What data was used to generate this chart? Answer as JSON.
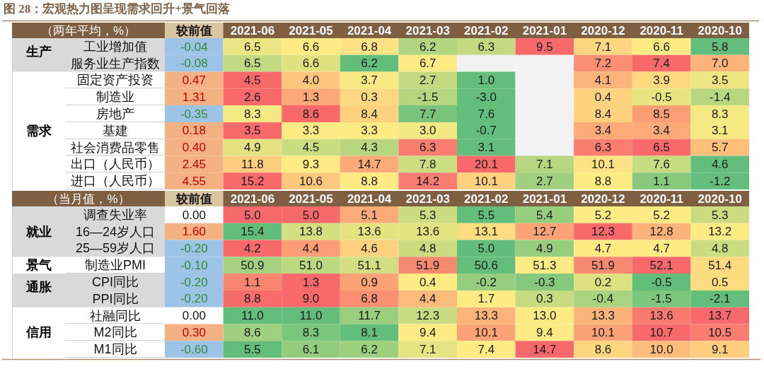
{
  "chart_data": [
    {
      "type": "heatmap",
      "title": "图 28：宏观热力图呈现需求回升+景气回落",
      "subtitle": "（两年平均，%）",
      "categories": [
        "较前值",
        "2021-06",
        "2021-05",
        "2021-04",
        "2021-03",
        "2021-02",
        "2021-01",
        "2020-12",
        "2020-11",
        "2020-10"
      ],
      "y_categories": [
        "工业增加值",
        "服务业生产指数",
        "固定资产投资",
        "制造业",
        "房地产",
        "基建",
        "社会消费品零售",
        "出口（人民币）",
        "进口（人民币）"
      ],
      "y2_categories": [
        "生产",
        null,
        null,
        null,
        null,
        "需求",
        null,
        null,
        null
      ],
      "cells": [
        [
          -0.04,
          6.5,
          6.6,
          6.8,
          6.2,
          6.3,
          9.5,
          7.1,
          6.6,
          5.8
        ],
        [
          -0.08,
          6.5,
          6.6,
          6.2,
          6.7,
          null,
          null,
          7.2,
          7.4,
          7.0
        ],
        [
          0.47,
          4.5,
          4.0,
          3.7,
          2.7,
          1.0,
          null,
          4.1,
          3.9,
          3.5
        ],
        [
          1.31,
          2.6,
          1.3,
          0.3,
          -1.5,
          -3.0,
          null,
          0.4,
          -0.5,
          -1.4
        ],
        [
          -0.35,
          8.3,
          8.6,
          8.4,
          7.7,
          7.6,
          null,
          8.4,
          8.5,
          8.3
        ],
        [
          0.18,
          3.5,
          3.3,
          3.3,
          3.0,
          -0.7,
          null,
          3.4,
          3.4,
          3.1
        ],
        [
          0.4,
          4.9,
          4.5,
          4.3,
          6.3,
          3.1,
          null,
          6.3,
          6.5,
          5.7
        ],
        [
          2.45,
          11.8,
          9.3,
          14.7,
          7.8,
          20.1,
          7.1,
          10.1,
          7.6,
          4.6
        ],
        [
          4.55,
          15.2,
          10.6,
          8.8,
          14.2,
          10.1,
          2.7,
          8.8,
          1.1,
          -1.2
        ]
      ],
      "cell_labels": [
        [
          "-0.04",
          "6.5",
          "6.6",
          "6.8",
          "6.2",
          "6.3",
          "9.5",
          "7.1",
          "6.6",
          "5.8"
        ],
        [
          "-0.08",
          "6.5",
          "6.6",
          "6.2",
          "6.7",
          null,
          null,
          "7.2",
          "7.4",
          "7.0"
        ],
        [
          "0.47",
          "4.5",
          "4.0",
          "3.7",
          "2.7",
          "1.0",
          null,
          "4.1",
          "3.9",
          "3.5"
        ],
        [
          "1.31",
          "2.6",
          "1.3",
          "0.3",
          "-1.5",
          "-3.0",
          null,
          "0.4",
          "-0.5",
          "-1.4"
        ],
        [
          "-0.35",
          "8.3",
          "8.6",
          "8.4",
          "7.7",
          "7.6",
          null,
          "8.4",
          "8.5",
          "8.3"
        ],
        [
          "0.18",
          "3.5",
          "3.3",
          "3.3",
          "3.0",
          "-0.7",
          null,
          "3.4",
          "3.4",
          "3.1"
        ],
        [
          "0.40",
          "4.9",
          "4.5",
          "4.3",
          "6.3",
          "3.1",
          null,
          "6.3",
          "6.5",
          "5.7"
        ],
        [
          "2.45",
          "11.8",
          "9.3",
          "14.7",
          "7.8",
          "20.1",
          "7.1",
          "10.1",
          "7.6",
          "4.6"
        ],
        [
          "4.55",
          "15.2",
          "10.6",
          "8.8",
          "14.2",
          "10.1",
          "2.7",
          "8.8",
          "1.1",
          "-1.2"
        ]
      ],
      "colors": [
        [
          "#9dc3e6",
          "#ebe583",
          "#ffeb84",
          "#fee283",
          "#b1d580",
          "#c5da80",
          "#f8696b",
          "#fed580",
          "#ffeb84",
          "#63be7b"
        ],
        [
          "#9dc3e6",
          "#c1d980",
          "#e0e282",
          "#63be7b",
          "#ffeb84",
          "#f2f2f2",
          "#f2f2f2",
          "#fa8f73",
          "#f8696b",
          "#fcb379"
        ],
        [
          "#f4b183",
          "#f8696b",
          "#fdc67c",
          "#f9e984",
          "#c2d980",
          "#63be7b",
          "#f2f2f2",
          "#fcb379",
          "#fed981",
          "#eee683"
        ],
        [
          "#f4b183",
          "#f8696b",
          "#fba878",
          "#fed880",
          "#b5d67f",
          "#63be7b",
          "#f2f2f2",
          "#fed37f",
          "#e9e583",
          "#b9d77f"
        ],
        [
          "#9dc3e6",
          "#f5e984",
          "#f8696b",
          "#fed17f",
          "#78c47c",
          "#63be7b",
          "#f2f2f2",
          "#fed17f",
          "#fb9d75",
          "#f5e984"
        ],
        [
          "#f4b183",
          "#f8696b",
          "#ffeb84",
          "#ffeb84",
          "#f3e984",
          "#63be7b",
          "#f2f2f2",
          "#fcaa78",
          "#fcaa78",
          "#f7e984"
        ],
        [
          "#f4b183",
          "#e3e382",
          "#c9dc80",
          "#b8d67f",
          "#f97e70",
          "#63be7b",
          "#f2f2f2",
          "#f97e70",
          "#f8696b",
          "#fdc07b"
        ],
        [
          "#f4b183",
          "#fecd7e",
          "#ffeb84",
          "#fcaa78",
          "#cddd81",
          "#f8696b",
          "#b6d67f",
          "#fee283",
          "#c7db80",
          "#63be7b"
        ],
        [
          "#f4b183",
          "#f8696b",
          "#fdc77c",
          "#ffeb84",
          "#f97d70",
          "#fed17f",
          "#a0d07f",
          "#ffeb84",
          "#88c97d",
          "#63be7b"
        ]
      ]
    },
    {
      "type": "heatmap",
      "subtitle": "（当月值，%）",
      "categories": [
        "较前值",
        "2021-06",
        "2021-05",
        "2021-04",
        "2021-03",
        "2021-02",
        "2021-01",
        "2020-12",
        "2020-11",
        "2020-10"
      ],
      "y_categories": [
        "调查失业率",
        "16—24岁人口",
        "25—59岁人口",
        "制造业PMI",
        "CPI同比",
        "PPI同比",
        "社融同比",
        "M2同比",
        "M1同比"
      ],
      "y2_categories": [
        null,
        "就业",
        null,
        "景气",
        "通胀",
        null,
        null,
        "信用",
        null
      ],
      "cells": [
        [
          0.0,
          5.0,
          5.0,
          5.1,
          5.3,
          5.5,
          5.4,
          5.2,
          5.2,
          5.3
        ],
        [
          1.6,
          15.4,
          13.8,
          13.6,
          13.6,
          13.1,
          12.7,
          12.3,
          12.8,
          13.2
        ],
        [
          -0.2,
          4.2,
          4.4,
          4.6,
          4.8,
          5.0,
          4.9,
          4.7,
          4.7,
          4.8
        ],
        [
          -0.1,
          50.9,
          51.0,
          51.1,
          51.9,
          50.6,
          51.3,
          51.9,
          52.1,
          51.4
        ],
        [
          -0.2,
          1.1,
          1.3,
          0.9,
          0.4,
          -0.2,
          -0.3,
          0.2,
          -0.5,
          0.5
        ],
        [
          -0.2,
          8.8,
          9.0,
          6.8,
          4.4,
          1.7,
          0.3,
          -0.4,
          -1.5,
          -2.1
        ],
        [
          0.0,
          11.0,
          11.0,
          11.7,
          12.3,
          13.3,
          13.0,
          13.3,
          13.6,
          13.7
        ],
        [
          0.3,
          8.6,
          8.3,
          8.1,
          9.4,
          10.1,
          9.4,
          10.1,
          10.7,
          10.5
        ],
        [
          -0.6,
          5.5,
          6.1,
          6.2,
          7.1,
          7.4,
          14.7,
          8.6,
          10.0,
          9.1
        ]
      ],
      "cell_labels": [
        [
          "0.00",
          "5.0",
          "5.0",
          "5.1",
          "5.3",
          "5.5",
          "5.4",
          "5.2",
          "5.2",
          "5.3"
        ],
        [
          "1.60",
          "15.4",
          "13.8",
          "13.6",
          "13.6",
          "13.1",
          "12.7",
          "12.3",
          "12.8",
          "13.2"
        ],
        [
          "-0.20",
          "4.2",
          "4.4",
          "4.6",
          "4.8",
          "5.0",
          "4.9",
          "4.7",
          "4.7",
          "4.8"
        ],
        [
          "-0.10",
          "50.9",
          "51.0",
          "51.1",
          "51.9",
          "50.6",
          "51.3",
          "51.9",
          "52.1",
          "51.4"
        ],
        [
          "-0.20",
          "1.1",
          "1.3",
          "0.9",
          "0.4",
          "-0.2",
          "-0.3",
          "0.2",
          "-0.5",
          "0.5"
        ],
        [
          "-0.20",
          "8.8",
          "9.0",
          "6.8",
          "4.4",
          "1.7",
          "0.3",
          "-0.4",
          "-1.5",
          "-2.1"
        ],
        [
          "0.00",
          "11.0",
          "11.0",
          "11.7",
          "12.3",
          "13.3",
          "13.0",
          "13.3",
          "13.6",
          "13.7"
        ],
        [
          "0.30",
          "8.6",
          "8.3",
          "8.1",
          "9.4",
          "10.1",
          "9.4",
          "10.1",
          "10.7",
          "10.5"
        ],
        [
          "-0.60",
          "5.5",
          "6.1",
          "6.2",
          "7.1",
          "7.4",
          "14.7",
          "8.6",
          "10.0",
          "9.1"
        ]
      ],
      "colors": [
        [
          "#ffffff",
          "#f8696b",
          "#f8696b",
          "#fcaa78",
          "#cbdc81",
          "#63be7b",
          "#97cd7e",
          "#ffeb84",
          "#ffeb84",
          "#cbdc81"
        ],
        [
          "#f4b183",
          "#63be7b",
          "#d4df81",
          "#e3e382",
          "#e3e382",
          "#fedc81",
          "#fba276",
          "#f8696b",
          "#fcb279",
          "#ffeb84"
        ],
        [
          "#9dc3e6",
          "#f8696b",
          "#fb9d75",
          "#fed17f",
          "#cbdc81",
          "#63be7b",
          "#97cd7e",
          "#ffeb84",
          "#ffeb84",
          "#cbdc81"
        ],
        [
          "#9dc3e6",
          "#a6d17f",
          "#bcd880",
          "#d2de81",
          "#f98a72",
          "#63be7b",
          "#ffeb84",
          "#f98a72",
          "#f8696b",
          "#fedb81"
        ],
        [
          "#9dc3e6",
          "#f98671",
          "#f8696b",
          "#fba276",
          "#ffeb84",
          "#97cd7e",
          "#86c87d",
          "#dde182",
          "#63be7b",
          "#fedc81"
        ],
        [
          "#9dc3e6",
          "#f86d6c",
          "#f8696b",
          "#fa9073",
          "#fcbb7b",
          "#ffeb84",
          "#c6db80",
          "#a9d37f",
          "#7cc67d",
          "#63be7b"
        ],
        [
          "#ffffff",
          "#63be7b",
          "#63be7b",
          "#9ace7e",
          "#cadc81",
          "#fcb379",
          "#ffeb84",
          "#fcb379",
          "#f97b6f",
          "#f8696b"
        ],
        [
          "#f4b183",
          "#9fcf7f",
          "#7bc67d",
          "#63be7b",
          "#ffeb84",
          "#fba377",
          "#ffeb84",
          "#fba377",
          "#f8696b",
          "#f97d70"
        ],
        [
          "#9dc3e6",
          "#63be7b",
          "#94cc7e",
          "#9ccf7e",
          "#e6e482",
          "#ffeb84",
          "#f8696b",
          "#fed680",
          "#fcbc7b",
          "#fecd7e"
        ]
      ]
    }
  ]
}
